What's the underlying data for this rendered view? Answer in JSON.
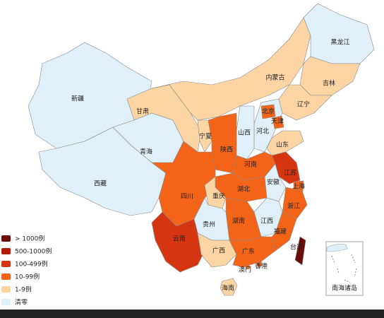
{
  "legend": [
    {
      "label": "> 1000例",
      "color": "#6b0d0b"
    },
    {
      "label": "500-1000例",
      "color": "#b31b0a"
    },
    {
      "label": "100-499例",
      "color": "#d63511"
    },
    {
      "label": "10-99例",
      "color": "#f46418"
    },
    {
      "label": "1-9例",
      "color": "#fdd5a4"
    },
    {
      "label": "清零",
      "color": "#dff0fa"
    }
  ],
  "regions": [
    {
      "name": "新疆",
      "color": "#dff0fa"
    },
    {
      "name": "西藏",
      "color": "#dff0fa"
    },
    {
      "name": "青海",
      "color": "#dff0fa"
    },
    {
      "name": "甘肃",
      "color": "#fdd5a4"
    },
    {
      "name": "内蒙古",
      "color": "#fdd5a4"
    },
    {
      "name": "黑龙江",
      "color": "#dff0fa"
    },
    {
      "name": "吉林",
      "color": "#fdd5a4"
    },
    {
      "name": "辽宁",
      "color": "#fdd5a4"
    },
    {
      "name": "河北",
      "color": "#dff0fa"
    },
    {
      "name": "北京",
      "color": "#f46418"
    },
    {
      "name": "天津",
      "color": "#f46418"
    },
    {
      "name": "山西",
      "color": "#dff0fa"
    },
    {
      "name": "山东",
      "color": "#fdd5a4"
    },
    {
      "name": "宁夏",
      "color": "#fdd5a4"
    },
    {
      "name": "陕西",
      "color": "#f46418"
    },
    {
      "name": "河南",
      "color": "#f46418"
    },
    {
      "name": "江苏",
      "color": "#d63511"
    },
    {
      "name": "上海",
      "color": "#f46418"
    },
    {
      "name": "安徽",
      "color": "#dff0fa"
    },
    {
      "name": "湖北",
      "color": "#f46418"
    },
    {
      "name": "四川",
      "color": "#f46418"
    },
    {
      "name": "重庆",
      "color": "#fdd5a4"
    },
    {
      "name": "浙江",
      "color": "#f46418"
    },
    {
      "name": "江西",
      "color": "#dff0fa"
    },
    {
      "name": "湖南",
      "color": "#f46418"
    },
    {
      "name": "贵州",
      "color": "#dff0fa"
    },
    {
      "name": "福建",
      "color": "#f46418"
    },
    {
      "name": "云南",
      "color": "#d63511"
    },
    {
      "name": "广西",
      "color": "#fdd5a4"
    },
    {
      "name": "广东",
      "color": "#f46418"
    },
    {
      "name": "香港",
      "color": "#f46418"
    },
    {
      "name": "澳门",
      "color": "#f46418"
    },
    {
      "name": "海南",
      "color": "#fdd5a4"
    },
    {
      "name": "台湾",
      "color": "#6b0d0b"
    }
  ],
  "inset": {
    "label": "南海诸岛"
  }
}
